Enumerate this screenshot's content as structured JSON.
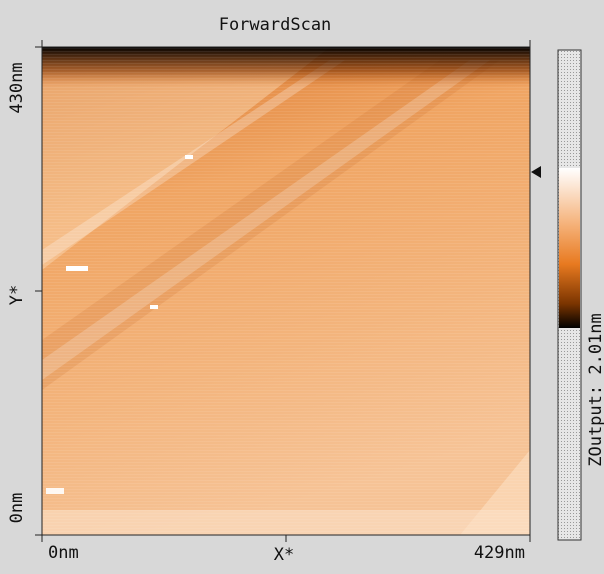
{
  "header": {
    "title": "ForwardScan"
  },
  "y_axis": {
    "top": "430nm",
    "name": "Y*",
    "bottom": "0nm"
  },
  "x_axis": {
    "left": "0nm",
    "name": "X*",
    "right": "429nm"
  },
  "colorbar": {
    "label": "ZOutput: 2.01nm"
  }
}
